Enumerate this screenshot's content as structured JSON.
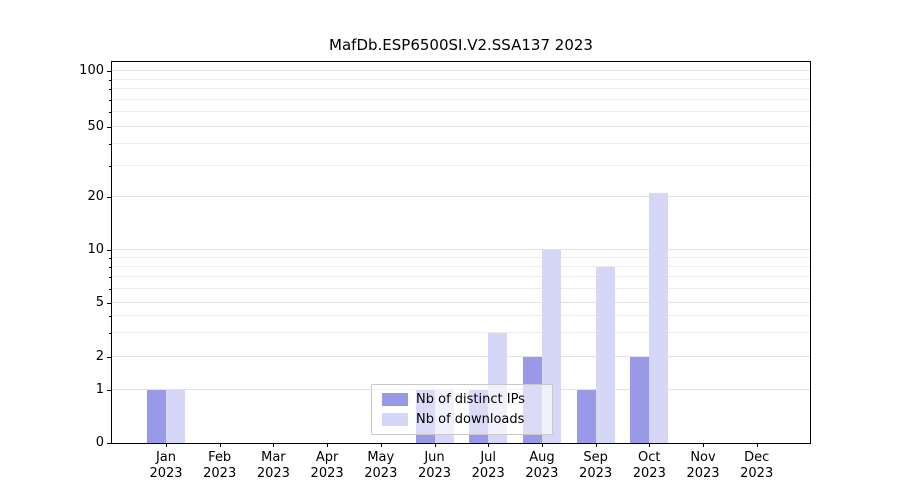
{
  "chart_data": {
    "type": "bar",
    "title": "MafDb.ESP6500SI.V2.SSA137 2023",
    "months": [
      "Jan",
      "Feb",
      "Mar",
      "Apr",
      "May",
      "Jun",
      "Jul",
      "Aug",
      "Sep",
      "Oct",
      "Nov",
      "Dec"
    ],
    "year": "2023",
    "series": [
      {
        "name": "Nb of distinct IPs",
        "color": "#9999e8",
        "values": [
          1,
          0,
          0,
          0,
          0,
          1,
          1,
          2,
          1,
          2,
          0,
          0
        ]
      },
      {
        "name": "Nb of downloads",
        "color": "#d6d6f6",
        "values": [
          1,
          0,
          0,
          0,
          0,
          1,
          3,
          10,
          8,
          21,
          0,
          0
        ]
      }
    ],
    "y_ticks": [
      0,
      1,
      2,
      5,
      10,
      20,
      50,
      100
    ],
    "minor_gridlines": [
      3,
      4,
      6,
      7,
      8,
      9,
      30,
      40,
      60,
      70,
      80,
      90
    ],
    "scale": "log-like (0,1,2,5,10,20,50,100)",
    "ylim": [
      0,
      110
    ],
    "grid": true,
    "legend_position": "lower center"
  }
}
